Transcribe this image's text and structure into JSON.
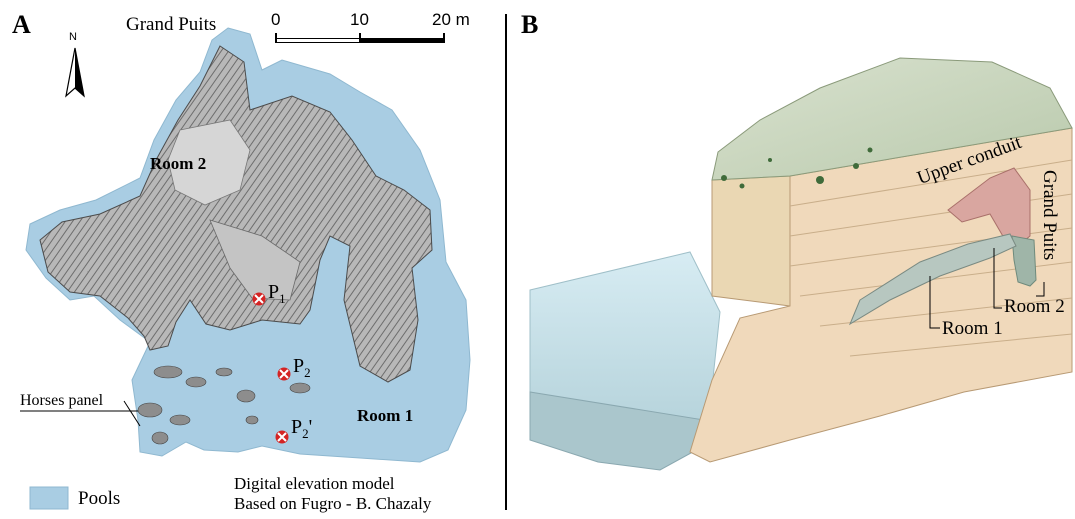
{
  "panel_a": {
    "letter": "A",
    "grand_puits": "Grand Puits",
    "scale": {
      "ticks": [
        "0",
        "10",
        "20 m"
      ]
    },
    "north": "N",
    "room2": "Room 2",
    "room1": "Room 1",
    "horses_panel": "Horses panel",
    "points": [
      {
        "main": "P",
        "sub": "1",
        "suffix": ""
      },
      {
        "main": "P",
        "sub": "2",
        "suffix": ""
      },
      {
        "main": "P",
        "sub": "2",
        "suffix": "'"
      }
    ],
    "legend_pools": "Pools",
    "credit_line1": "Digital elevation model",
    "credit_line2": "Based on Fugro - B. Chazaly",
    "colors": {
      "pool": "#a9cde3",
      "terrain": "#9a9a9a",
      "marker": "#d42424"
    }
  },
  "panel_b": {
    "letter": "B",
    "upper_conduit": "Upper conduit",
    "grand_puits": "Grand Puits",
    "room2": "Room 2",
    "room1": "Room 1",
    "colors": {
      "rock": "#f0d9bb",
      "water": "#c9e3ea",
      "cave": "#c98a8a"
    }
  }
}
